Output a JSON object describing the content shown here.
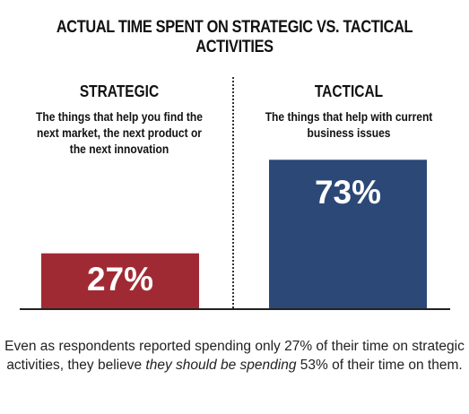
{
  "chart_data": {
    "type": "bar",
    "title": "ACTUAL TIME SPENT ON STRATEGIC VS. TACTICAL ACTIVITIES",
    "categories": [
      "STRATEGIC",
      "TACTICAL"
    ],
    "descriptions": [
      "The things that help you find the next market, the next product or the next innovation",
      "The things that help with current business issues"
    ],
    "values": [
      27,
      73
    ],
    "value_labels": [
      "27%",
      "73%"
    ],
    "colors": [
      "#a02a33",
      "#2b4877"
    ],
    "ylim": [
      0,
      100
    ]
  },
  "caption": {
    "part1": "Even as respondents reported spending only 27% of their time on strategic activities, they believe ",
    "emphasis": "they should be spending",
    "part2": " 53% of their time on them."
  }
}
